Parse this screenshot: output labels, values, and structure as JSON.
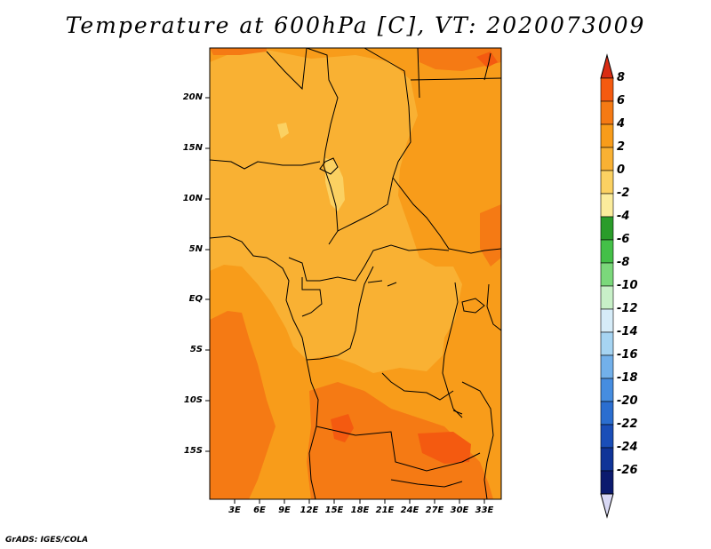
{
  "title": "Temperature at 600hPa [C], VT: 2020073009",
  "footer": "GrADS: IGES/COLA",
  "map": {
    "lon_range": [
      "1E",
      "35E"
    ],
    "lat_range": [
      "20S",
      "25N"
    ],
    "y_ticks": [
      "20N",
      "15N",
      "10N",
      "5N",
      "EQ",
      "5S",
      "10S",
      "15S"
    ],
    "x_ticks": [
      "3E",
      "6E",
      "9E",
      "12E",
      "15E",
      "18E",
      "21E",
      "24E",
      "27E",
      "30E",
      "33E"
    ]
  },
  "legend": {
    "labels": [
      "8",
      "6",
      "4",
      "2",
      "0",
      "-2",
      "-4",
      "-6",
      "-8",
      "-10",
      "-12",
      "-14",
      "-16",
      "-18",
      "-20",
      "-22",
      "-24",
      "-26"
    ],
    "colors": [
      "#d92c14",
      "#f45a10",
      "#f57a14",
      "#f89c1a",
      "#f9b133",
      "#fbd162",
      "#fbec9c",
      "#2a9c2a",
      "#44c048",
      "#7bd87b",
      "#c8f0c8",
      "#d6ecf8",
      "#a6d4f2",
      "#72b0ea",
      "#468de0",
      "#2b6ed0",
      "#1a4eb8",
      "#0f3498",
      "#0b1a6e"
    ],
    "top_arrow_color": "#d92c14",
    "bottom_arrow_color": "#d8d8f4"
  },
  "field_colors": {
    "c1": "#fbd162",
    "c2": "#f9b133",
    "c3": "#f89c1a",
    "c4": "#f57a14",
    "c5": "#f45a10",
    "c6": "#d92c14"
  }
}
